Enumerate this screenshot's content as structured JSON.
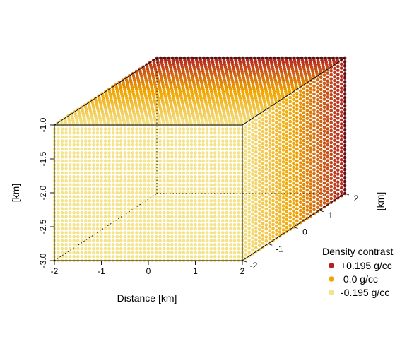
{
  "chart_data": {
    "type": "scatter",
    "subtype": "3d-voxel-scatter",
    "title": "",
    "xlabel": "Distance [km]",
    "ylabel": "[km]",
    "zlabel": "[km]",
    "xlim": [
      -2,
      2
    ],
    "ylim": [
      -2,
      2
    ],
    "zlim": [
      -3.0,
      -1.0
    ],
    "x_ticks": [
      "-2",
      "-1",
      "0",
      "1",
      "2"
    ],
    "y_ticks": [
      "-2",
      "-1",
      "0",
      "1",
      "2"
    ],
    "z_ticks": [
      "-3.0",
      "-2.5",
      "-2.0",
      "-1.5",
      "-1.0"
    ],
    "grid": false,
    "legend": {
      "title": "Density contrast",
      "position": "bottom-right",
      "entries": [
        {
          "label": "+0.195 g/cc",
          "value": 0.195,
          "color": "#b22222"
        },
        {
          "label": " 0.0 g/cc",
          "value": 0.0,
          "color": "#f0a500"
        },
        {
          "label": "-0.195 g/cc",
          "value": -0.195,
          "color": "#f3e38a"
        }
      ]
    },
    "colors": {
      "high": "#b22222",
      "mid": "#f0a500",
      "low": "#f3e38a"
    },
    "field": "density contrast increases with y (depth direction) from -0.195 g/cc at y=-2 to +0.195 g/cc at y=2"
  }
}
